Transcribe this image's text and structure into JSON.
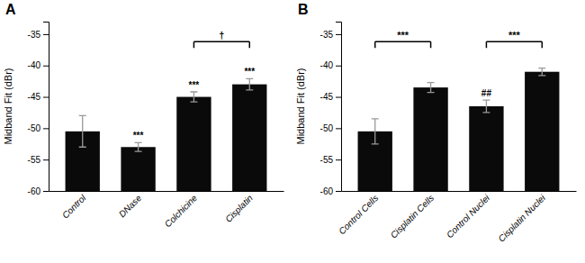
{
  "chart_data": [
    {
      "type": "bar",
      "title": "A",
      "ylabel": "Midband Fit (dBr)",
      "categories": [
        "Control",
        "DNase",
        "Colchicine",
        "Cisplatin"
      ],
      "values": [
        -50.5,
        -53.0,
        -45.0,
        -43.0
      ],
      "errors": [
        2.5,
        0.7,
        0.8,
        0.9
      ],
      "color": "#0a0a0a",
      "annotations": [
        {
          "category": "DNase",
          "text": "***"
        },
        {
          "category": "Colchicine",
          "text": "***"
        },
        {
          "category": "Cisplatin",
          "text": "***"
        }
      ],
      "brackets": [
        {
          "categories": [
            "Colchicine",
            "Cisplatin"
          ],
          "label": "†",
          "y": -36.2,
          "tip_y": -37.2
        }
      ],
      "ylim": [
        -60,
        -33
      ],
      "yticks": [
        -60,
        -55,
        -50,
        -45,
        -40,
        -35
      ],
      "grid": false
    },
    {
      "type": "bar",
      "title": "B",
      "ylabel": "Midband Fit (dBr)",
      "categories": [
        "Control Cells",
        "Cisplatin Cells",
        "Control Nuclei",
        "Cisplatin Nuclei"
      ],
      "values": [
        -50.5,
        -43.5,
        -46.5,
        -41.0
      ],
      "errors": [
        2.0,
        0.8,
        1.0,
        0.6
      ],
      "color": "#0a0a0a",
      "annotations": [
        {
          "category": "Control Nuclei",
          "text": "##"
        }
      ],
      "brackets": [
        {
          "categories": [
            "Control Cells",
            "Cisplatin Cells"
          ],
          "label": "***",
          "y": -36.2,
          "tip_y": -37.2
        },
        {
          "categories": [
            "Control Nuclei",
            "Cisplatin Nuclei"
          ],
          "label": "***",
          "y": -36.2,
          "tip_y": -37.2
        }
      ],
      "ylim": [
        -60,
        -33
      ],
      "yticks": [
        -60,
        -55,
        -50,
        -45,
        -40,
        -35
      ],
      "grid": false
    }
  ]
}
